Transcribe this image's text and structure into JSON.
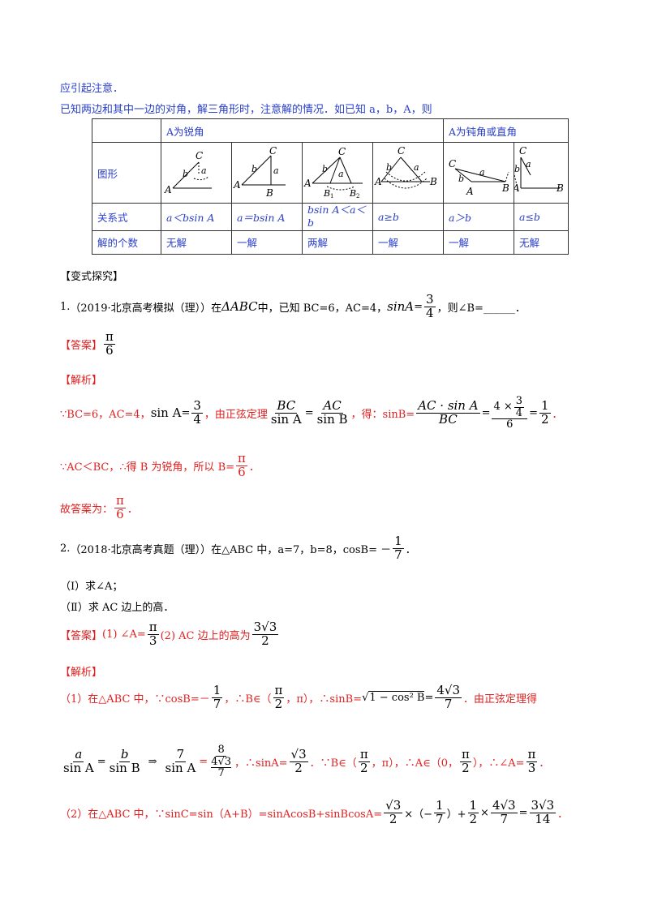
{
  "header": {
    "line1": "应引起注意．",
    "line2": "已知两边和其中一边的对角，解三角形时，注意解的情况．如已知 a，b，A，则"
  },
  "table": {
    "head_acute": "A为锐角",
    "head_obtuse": "A为钝角或直角",
    "row_figure_label": "图形",
    "row_relation_label": "关系式",
    "row_count_label": "解的个数",
    "relations": [
      "a＜bsin A",
      "a＝bsin A",
      "bsin A＜a＜b",
      "a≥b",
      "a＞b",
      "a≤b"
    ],
    "counts": [
      "无解",
      "一解",
      "两解",
      "一解",
      "一解",
      "无解"
    ],
    "fig_labels": {
      "A": "A",
      "B": "B",
      "C": "C",
      "a": "a",
      "b": "b",
      "B1": "B",
      "B2": "B",
      "sub1": "1",
      "sub2": "2"
    }
  },
  "section_title": "【变式探究】",
  "q1": {
    "num": "1.",
    "source": "（2019·北京高考模拟（理））在",
    "triangle": "ΔABC",
    "mid": "中，已知 BC=6，AC=4，",
    "sinA": "sinA",
    "eq": "=",
    "frac_num": "3",
    "frac_den": "4",
    "tail": "，则∠B=______．",
    "answer_tag": "【答案】",
    "answer_num": "π",
    "answer_den": "6",
    "analysis_tag": "【解析】",
    "s1_a": "∵BC=6，AC=4，",
    "s1_sinA": "sin A",
    "s1_eq": "=",
    "s1_n": "3",
    "s1_d": "4",
    "s1_b": "，由正弦定理",
    "s1_f1n": "BC",
    "s1_f1d": "sin A",
    "s1_f2n": "AC",
    "s1_f2d": "sin B",
    "s1_c": "，得：sinB=",
    "s1_f3n": "AC · sin A",
    "s1_f3d": "BC",
    "s1_f4n_a": "4 ×",
    "s1_f4n_n": "3",
    "s1_f4n_d": "4",
    "s1_f4d": "6",
    "s1_f5n": "1",
    "s1_f5d": "2",
    "s1_end": "．",
    "s2": "∵AC＜BC，∴得 B 为锐角，所以 B=",
    "s2_n": "π",
    "s2_d": "6",
    "s2_end": "．",
    "s3": "故答案为：",
    "s3_n": "π",
    "s3_d": "6",
    "s3_end": "．"
  },
  "q2": {
    "num": "2.",
    "source": "（2018·北京高考真题（理））在△ABC 中，a=7，b=8，cosB= －",
    "n": "1",
    "d": "7",
    "end": "．",
    "part1": "（Ⅰ）求∠A；",
    "part2": "（Ⅱ）求 AC 边上的高．",
    "answer_tag": "【答案】",
    "ans1": "(1) ∠A=",
    "ans1_n": "π",
    "ans1_d": "3",
    "ans2": " (2) AC 边上的高为",
    "ans2_n": "3√3",
    "ans2_d": "2",
    "analysis_tag": "【解析】",
    "l1_a": "（1）在△ABC 中，∵cosB=－",
    "l1_n": "1",
    "l1_d": "7",
    "l1_b": "，∴B∈（",
    "l1_pn": "π",
    "l1_pd": "2",
    "l1_c": "，π），∴sinB=",
    "l1_sq": "1 − cos² B",
    "l1_eq": "=",
    "l1_rn": "4√3",
    "l1_rd": "7",
    "l1_d2": "．由正弦定理得",
    "l2_an": "a",
    "l2_ad": "sin A",
    "l2_bn": "b",
    "l2_bd": "sin B",
    "l2_arrow": "⇒",
    "l2_7n": "7",
    "l2_7d": "sin A",
    "l2_8n": "8",
    "l2_8m": "4√3",
    "l2_8d": "7",
    "l2_a": "，∴sinA=",
    "l2_sn": "√3",
    "l2_sd": "2",
    "l2_b": "．∵B∈（",
    "l2_pn": "π",
    "l2_pd": "2",
    "l2_c": "，π），∴A∈（0，",
    "l2_qn": "π",
    "l2_qd": "2",
    "l2_d": "），∴∠A=",
    "l2_rn": "π",
    "l2_rd": "3",
    "l2_e": "．",
    "l3_a": "（2）在△ABC 中，∵sinC=sin（A+B）=sinAcosB+sinBcosA=",
    "l3_f1n": "√3",
    "l3_f1d": "2",
    "l3_b": "×（−",
    "l3_f2n": "1",
    "l3_f2d": "7",
    "l3_c": "）+",
    "l3_f3n": "1",
    "l3_f3d": "2",
    "l3_x": "×",
    "l3_f4n": "4√3",
    "l3_f4d": "7",
    "l3_eq": "=",
    "l3_f5n": "3√3",
    "l3_f5d": "14",
    "l3_end": "．"
  }
}
